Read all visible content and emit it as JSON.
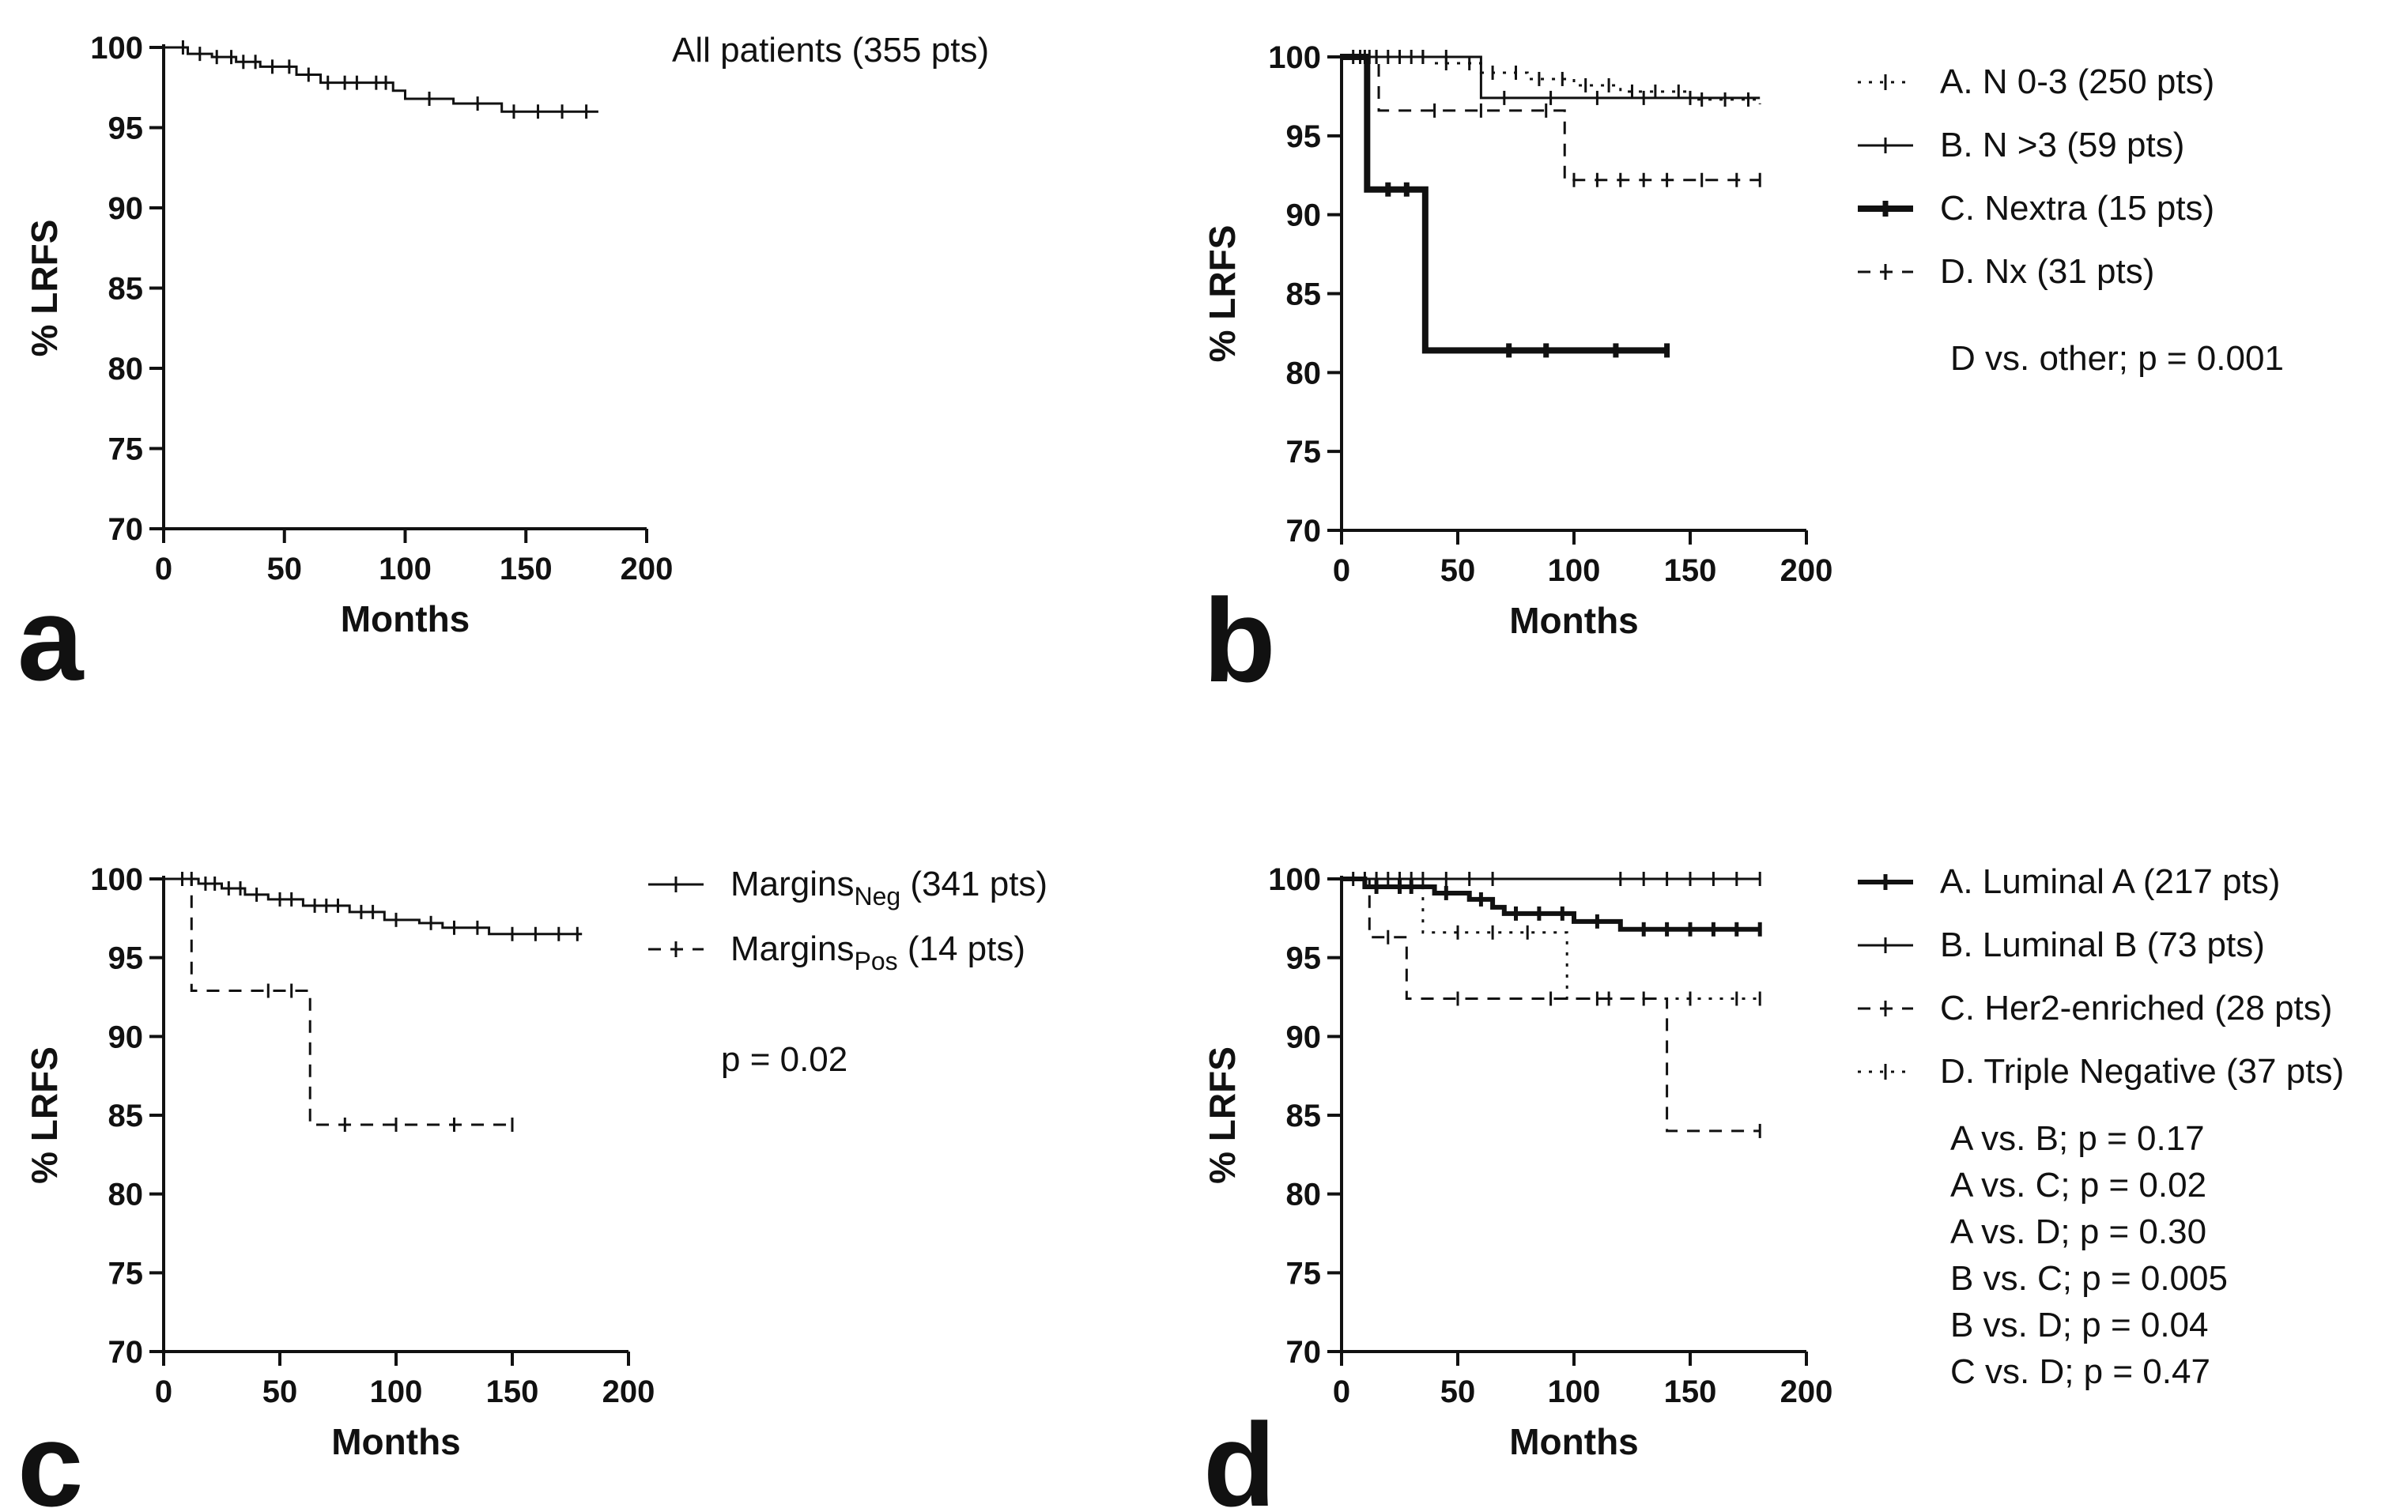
{
  "chart_data": [
    {
      "panel": "a",
      "type": "line",
      "xlabel": "Months",
      "ylabel": "% LRFS",
      "xlim": [
        0,
        200
      ],
      "ylim": [
        70,
        100
      ],
      "xticks": [
        0,
        50,
        100,
        150,
        200
      ],
      "yticks": [
        70,
        75,
        80,
        85,
        90,
        95,
        100
      ],
      "annotation": "All patients (355 pts)",
      "stats": [],
      "series": [
        {
          "name": "All patients (355 pts)",
          "style": "solid",
          "steps": [
            [
              0,
              100
            ],
            [
              10,
              99.6
            ],
            [
              20,
              99.4
            ],
            [
              30,
              99.1
            ],
            [
              40,
              98.8
            ],
            [
              55,
              98.3
            ],
            [
              65,
              97.8
            ],
            [
              95,
              97.3
            ],
            [
              100,
              96.8
            ],
            [
              120,
              96.5
            ],
            [
              140,
              96.0
            ],
            [
              180,
              96.0
            ]
          ],
          "censor": [
            8,
            15,
            22,
            28,
            33,
            38,
            45,
            52,
            60,
            68,
            75,
            80,
            88,
            92,
            110,
            130,
            145,
            155,
            165,
            175
          ]
        }
      ]
    },
    {
      "panel": "b",
      "type": "line",
      "xlabel": "Months",
      "ylabel": "% LRFS",
      "xlim": [
        0,
        200
      ],
      "ylim": [
        70,
        100
      ],
      "xticks": [
        0,
        50,
        100,
        150,
        200
      ],
      "yticks": [
        70,
        75,
        80,
        85,
        90,
        95,
        100
      ],
      "annotation": "",
      "stats": [
        "D vs. other; p = 0.001"
      ],
      "series": [
        {
          "name": "A. N 0-3 (250 pts)",
          "legend_label": "A. N 0-3 (250 pts)",
          "style": "dotted",
          "width": 3,
          "steps": [
            [
              0,
              100
            ],
            [
              40,
              99.6
            ],
            [
              60,
              99.0
            ],
            [
              80,
              98.6
            ],
            [
              100,
              98.2
            ],
            [
              120,
              97.8
            ],
            [
              150,
              97.3
            ],
            [
              180,
              97.0
            ]
          ],
          "censor": [
            5,
            10,
            15,
            20,
            25,
            30,
            35,
            45,
            55,
            65,
            75,
            85,
            95,
            105,
            115,
            125,
            135,
            145,
            155,
            165,
            175
          ]
        },
        {
          "name": "B. N >3 (59 pts)",
          "legend_label": "B. N >3 (59 pts)",
          "style": "solid",
          "width": 3,
          "steps": [
            [
              0,
              100
            ],
            [
              60,
              97.4
            ],
            [
              180,
              97.4
            ]
          ],
          "censor": [
            8,
            15,
            25,
            35,
            45,
            70,
            90,
            110,
            130,
            150
          ]
        },
        {
          "name": "C. Nextra (15 pts)",
          "legend_label": "C. Nextra (15 pts)",
          "style": "thick",
          "width": 8,
          "steps": [
            [
              0,
              100
            ],
            [
              11,
              91.6
            ],
            [
              36,
              81.4
            ],
            [
              140,
              81.4
            ]
          ],
          "censor": [
            20,
            28,
            72,
            88,
            118,
            140
          ]
        },
        {
          "name": "D. Nx (31 pts)",
          "legend_label": "D. Nx (31 pts)",
          "style": "dashed",
          "width": 3,
          "steps": [
            [
              0,
              100
            ],
            [
              16,
              96.6
            ],
            [
              96,
              92.2
            ],
            [
              180,
              92.2
            ]
          ],
          "censor": [
            8,
            12,
            40,
            60,
            88,
            100,
            110,
            120,
            130,
            140,
            155,
            170,
            180
          ]
        }
      ]
    },
    {
      "panel": "c",
      "type": "line",
      "xlabel": "Months",
      "ylabel": "% LRFS",
      "xlim": [
        0,
        200
      ],
      "ylim": [
        70,
        100
      ],
      "xticks": [
        0,
        50,
        100,
        150,
        200
      ],
      "yticks": [
        70,
        75,
        80,
        85,
        90,
        95,
        100
      ],
      "annotation": "",
      "stats": [
        "p = 0.02"
      ],
      "series": [
        {
          "name": "MarginsNeg (341 pts)",
          "legend_label": "Margins",
          "legend_sub": "Neg",
          "legend_suffix": " (341 pts)",
          "style": "solid",
          "width": 3,
          "steps": [
            [
              0,
              100
            ],
            [
              15,
              99.7
            ],
            [
              25,
              99.4
            ],
            [
              35,
              99.0
            ],
            [
              45,
              98.7
            ],
            [
              60,
              98.3
            ],
            [
              80,
              97.9
            ],
            [
              95,
              97.4
            ],
            [
              110,
              97.2
            ],
            [
              120,
              96.9
            ],
            [
              140,
              96.5
            ],
            [
              180,
              96.5
            ]
          ],
          "censor": [
            8,
            12,
            18,
            22,
            28,
            33,
            40,
            50,
            55,
            65,
            70,
            75,
            85,
            90,
            100,
            115,
            125,
            135,
            150,
            160,
            170,
            178
          ]
        },
        {
          "name": "MarginsPos (14 pts)",
          "legend_label": "Margins",
          "legend_sub": "Pos",
          "legend_suffix": " (14 pts)",
          "style": "dashed",
          "width": 3,
          "steps": [
            [
              0,
              100
            ],
            [
              12,
              92.9
            ],
            [
              63,
              84.4
            ],
            [
              150,
              84.4
            ]
          ],
          "censor": [
            45,
            55,
            78,
            100,
            125,
            150
          ]
        }
      ]
    },
    {
      "panel": "d",
      "type": "line",
      "xlabel": "Months",
      "ylabel": "% LRFS",
      "xlim": [
        0,
        200
      ],
      "ylim": [
        70,
        100
      ],
      "xticks": [
        0,
        50,
        100,
        150,
        200
      ],
      "yticks": [
        70,
        75,
        80,
        85,
        90,
        95,
        100
      ],
      "annotation": "",
      "stats": [
        "A vs. B; p = 0.17",
        "A vs. C; p = 0.02",
        "A vs. D; p = 0.30",
        "B vs. C; p = 0.005",
        "B vs.  D; p = 0.04",
        "C vs.  D; p = 0.47"
      ],
      "series": [
        {
          "name": "A. Luminal A (217 pts)",
          "legend_label": "A. Luminal A (217 pts)",
          "style": "solid",
          "width": 6,
          "steps": [
            [
              0,
              100
            ],
            [
              10,
              99.5
            ],
            [
              40,
              99.1
            ],
            [
              55,
              98.7
            ],
            [
              65,
              98.2
            ],
            [
              70,
              97.8
            ],
            [
              100,
              97.3
            ],
            [
              120,
              96.8
            ],
            [
              180,
              96.8
            ]
          ],
          "censor": [
            15,
            25,
            30,
            45,
            60,
            75,
            85,
            95,
            110,
            130,
            140,
            150,
            160,
            170,
            180
          ]
        },
        {
          "name": "B. Luminal B (73 pts)",
          "legend_label": "B. Luminal B (73 pts)",
          "style": "solid",
          "width": 3,
          "steps": [
            [
              0,
              100
            ],
            [
              180,
              100
            ]
          ],
          "censor": [
            5,
            10,
            15,
            20,
            25,
            30,
            35,
            45,
            55,
            65,
            120,
            130,
            140,
            150,
            160,
            170,
            180
          ]
        },
        {
          "name": "C. Her2-enriched (28 pts)",
          "legend_label": "C. Her2-enriched (28 pts)",
          "style": "dashed",
          "width": 3,
          "steps": [
            [
              0,
              100
            ],
            [
              12,
              96.3
            ],
            [
              28,
              92.4
            ],
            [
              140,
              84.0
            ],
            [
              180,
              84.0
            ]
          ],
          "censor": [
            20,
            50,
            90,
            115,
            180
          ]
        },
        {
          "name": "D. Triple Negative (37 pts)",
          "legend_label": "D. Triple Negative (37 pts)",
          "style": "dotted",
          "width": 3,
          "steps": [
            [
              0,
              100
            ],
            [
              35,
              96.6
            ],
            [
              97,
              92.4
            ],
            [
              180,
              92.4
            ]
          ],
          "censor": [
            50,
            65,
            80,
            110,
            130,
            150,
            170,
            180
          ]
        }
      ]
    }
  ]
}
